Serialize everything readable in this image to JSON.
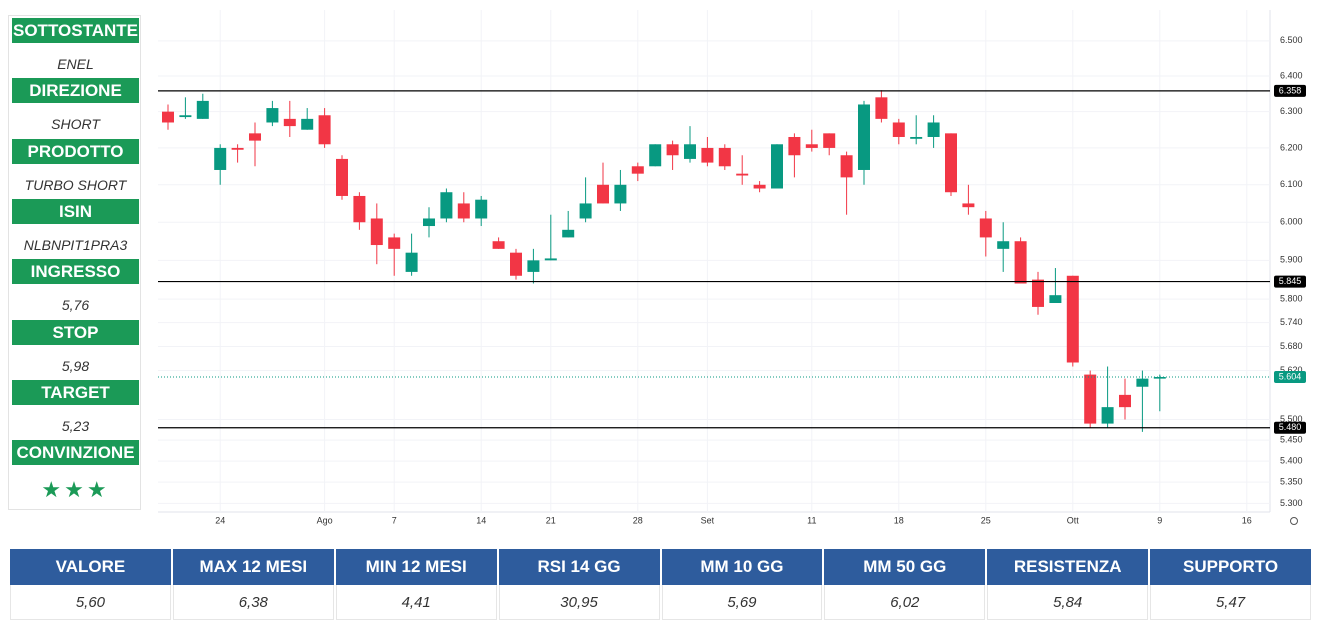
{
  "sidebar": [
    {
      "label": "SOTTOSTANTE",
      "value": "ENEL"
    },
    {
      "label": "DIREZIONE",
      "value": "SHORT"
    },
    {
      "label": "PRODOTTO",
      "value": "TURBO SHORT"
    },
    {
      "label": "ISIN",
      "value": "NLBNPIT1PRA3"
    },
    {
      "label": "INGRESSO",
      "value": "5,76"
    },
    {
      "label": "STOP",
      "value": "5,98"
    },
    {
      "label": "TARGET",
      "value": "5,23"
    },
    {
      "label": "CONVINZIONE",
      "value": "★★★"
    }
  ],
  "chart_data": {
    "type": "candlestick",
    "log": true,
    "grid": true,
    "up_color": "#089981",
    "down_color": "#f23645",
    "categories": [
      null,
      null,
      null,
      "24",
      null,
      null,
      null,
      null,
      null,
      "Ago",
      null,
      null,
      null,
      "7",
      null,
      null,
      null,
      null,
      "14",
      null,
      null,
      null,
      "21",
      null,
      null,
      null,
      null,
      "28",
      null,
      null,
      null,
      "Set",
      null,
      null,
      null,
      null,
      null,
      "11",
      null,
      null,
      null,
      null,
      "18",
      null,
      null,
      null,
      null,
      "25",
      null,
      null,
      null,
      null,
      "Ott",
      null,
      null,
      null,
      null,
      "9",
      null,
      null,
      null,
      null,
      "16",
      null
    ],
    "open": [
      6.3,
      6.285,
      6.28,
      6.14,
      6.2,
      6.24,
      6.27,
      6.28,
      6.25,
      6.29,
      6.17,
      6.07,
      6.01,
      5.96,
      5.87,
      5.99,
      6.01,
      6.05,
      6.01,
      5.95,
      5.92,
      5.87,
      5.9,
      5.96,
      6.01,
      6.1,
      6.05,
      6.15,
      6.15,
      6.21,
      6.17,
      6.2,
      6.2,
      6.13,
      6.1,
      6.09,
      6.23,
      6.21,
      6.24,
      6.18,
      6.14,
      6.34,
      6.27,
      6.225,
      6.23,
      6.24,
      6.05,
      6.01,
      5.93,
      5.95,
      5.85,
      5.79,
      5.86,
      5.61,
      5.49,
      5.56,
      5.58,
      5.6,
      null,
      null,
      null,
      null,
      null,
      null
    ],
    "high": [
      6.32,
      6.34,
      6.35,
      6.21,
      6.21,
      6.27,
      6.33,
      6.33,
      6.31,
      6.31,
      6.18,
      6.08,
      6.05,
      5.97,
      5.97,
      6.04,
      6.09,
      6.08,
      6.07,
      5.96,
      5.93,
      5.93,
      6.02,
      6.03,
      6.12,
      6.16,
      6.14,
      6.16,
      6.21,
      6.22,
      6.26,
      6.23,
      6.21,
      6.18,
      6.11,
      6.21,
      6.24,
      6.25,
      6.24,
      6.19,
      6.33,
      6.36,
      6.28,
      6.29,
      6.29,
      6.24,
      6.1,
      6.03,
      6.0,
      5.96,
      5.87,
      5.88,
      5.86,
      5.62,
      5.63,
      5.6,
      5.62,
      5.61,
      null,
      null,
      null,
      null,
      null,
      null
    ],
    "low": [
      6.25,
      6.28,
      6.28,
      6.1,
      6.16,
      6.15,
      6.26,
      6.23,
      6.25,
      6.2,
      6.06,
      5.98,
      5.89,
      5.86,
      5.86,
      5.96,
      6.0,
      6.0,
      5.99,
      5.93,
      5.85,
      5.84,
      5.9,
      5.96,
      6.0,
      6.05,
      6.03,
      6.11,
      6.15,
      6.14,
      6.16,
      6.15,
      6.14,
      6.1,
      6.08,
      6.09,
      6.12,
      6.19,
      6.18,
      6.02,
      6.1,
      6.27,
      6.21,
      6.21,
      6.2,
      6.07,
      6.02,
      5.91,
      5.87,
      5.84,
      5.76,
      5.79,
      5.63,
      5.48,
      5.48,
      5.5,
      5.47,
      5.52,
      null,
      null,
      null,
      null,
      null,
      null
    ],
    "close": [
      6.27,
      6.29,
      6.33,
      6.2,
      6.195,
      6.22,
      6.31,
      6.26,
      6.28,
      6.21,
      6.07,
      6.0,
      5.94,
      5.93,
      5.92,
      6.01,
      6.08,
      6.01,
      6.06,
      5.93,
      5.86,
      5.9,
      5.905,
      5.98,
      6.05,
      6.05,
      6.1,
      6.13,
      6.21,
      6.18,
      6.21,
      6.16,
      6.15,
      6.125,
      6.09,
      6.21,
      6.18,
      6.2,
      6.2,
      6.12,
      6.32,
      6.28,
      6.23,
      6.23,
      6.27,
      6.08,
      6.04,
      5.96,
      5.95,
      5.84,
      5.78,
      5.81,
      5.64,
      5.49,
      5.53,
      5.53,
      5.6,
      5.604,
      null,
      null,
      null,
      null,
      null,
      null
    ],
    "ylim": [
      5.28,
      6.56
    ],
    "yticks": [
      {
        "value": 6.5,
        "label": "6.500"
      },
      {
        "value": 6.4,
        "label": "6.400"
      },
      {
        "value": 6.3,
        "label": "6.300"
      },
      {
        "value": 6.2,
        "label": "6.200"
      },
      {
        "value": 6.1,
        "label": "6.100"
      },
      {
        "value": 6.0,
        "label": "6.000"
      },
      {
        "value": 5.9,
        "label": "5.900"
      },
      {
        "value": 5.8,
        "label": "5.800"
      },
      {
        "value": 5.74,
        "label": "5.740"
      },
      {
        "value": 5.68,
        "label": "5.680"
      },
      {
        "value": 5.62,
        "label": "5.620"
      },
      {
        "value": 5.5,
        "label": "5.500"
      },
      {
        "value": 5.45,
        "label": "5.450"
      },
      {
        "value": 5.4,
        "label": "5.400"
      },
      {
        "value": 5.35,
        "label": "5.350"
      },
      {
        "value": 5.3,
        "label": "5.300"
      }
    ],
    "hlines": [
      {
        "value": 6.358,
        "label": "6.358",
        "color": "#000000",
        "style": "solid"
      },
      {
        "value": 5.845,
        "label": "5.845",
        "color": "#000000",
        "style": "solid"
      },
      {
        "value": 5.48,
        "label": "5.480",
        "color": "#000000",
        "style": "solid"
      },
      {
        "value": 5.604,
        "label": "5.604",
        "color": "#089981",
        "style": "dotted"
      }
    ]
  },
  "table": {
    "headers": [
      "VALORE",
      "MAX 12 MESI",
      "MIN 12 MESI",
      "RSI 14 GG",
      "MM 10 GG",
      "MM 50 GG",
      "RESISTENZA",
      "SUPPORTO"
    ],
    "rows": [
      [
        "5,60",
        "6,38",
        "4,41",
        "30,95",
        "5,69",
        "6,02",
        "5,84",
        "5,47"
      ]
    ]
  }
}
